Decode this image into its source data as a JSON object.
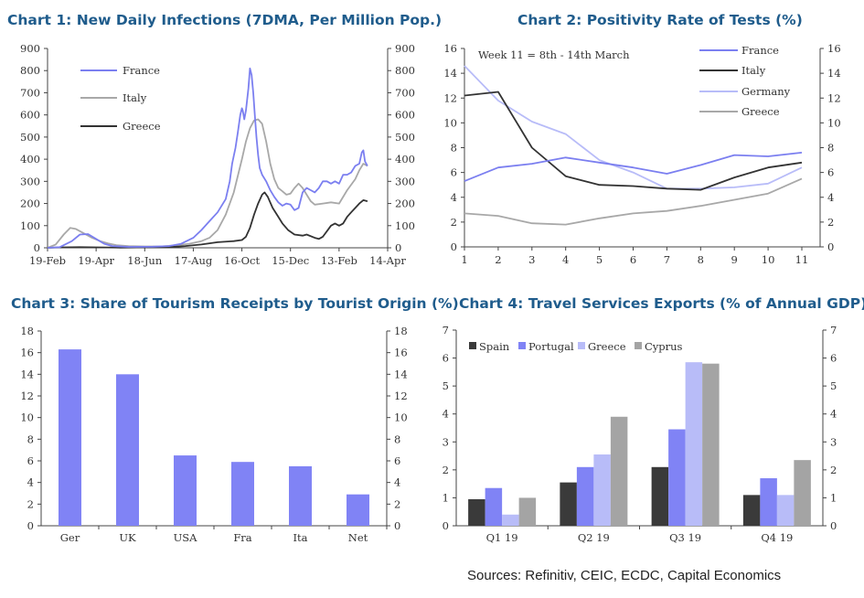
{
  "sources": "Sources: Refinitiv, CEIC, ECDC, Capital Economics",
  "colors": {
    "france": "#7b7ff0",
    "italy": "#333333",
    "germany": "#b8bcf8",
    "greece_line": "#a8a8a8",
    "italy_c1": "#a8a8a8",
    "greece_c1": "#333333",
    "bar": "#8083f5",
    "spain": "#3a3a3a",
    "portugal": "#8083f5",
    "greece_bar": "#b8bcf8",
    "cyprus": "#a4a4a4",
    "title": "#1f5c8c"
  },
  "chart_data": [
    {
      "type": "line",
      "title": "Chart 1: New Daily Infections (7DMA, Per Million Pop.)",
      "x_ticks": [
        "19-Feb",
        "19-Apr",
        "18-Jun",
        "17-Aug",
        "16-Oct",
        "15-Dec",
        "13-Feb",
        "14-Apr"
      ],
      "x_tick_days": [
        0,
        60,
        120,
        180,
        240,
        300,
        360,
        420
      ],
      "y_ticks": [
        "0",
        "100",
        "200",
        "300",
        "400",
        "500",
        "600",
        "700",
        "800",
        "900"
      ],
      "ylim": [
        0,
        900
      ],
      "xlim": [
        0,
        420
      ],
      "series": [
        {
          "name": "France",
          "points": [
            [
              0,
              0
            ],
            [
              15,
              3
            ],
            [
              30,
              30
            ],
            [
              40,
              60
            ],
            [
              50,
              62
            ],
            [
              60,
              40
            ],
            [
              70,
              18
            ],
            [
              80,
              8
            ],
            [
              100,
              4
            ],
            [
              130,
              5
            ],
            [
              150,
              8
            ],
            [
              165,
              18
            ],
            [
              180,
              45
            ],
            [
              190,
              80
            ],
            [
              200,
              120
            ],
            [
              210,
              160
            ],
            [
              220,
              220
            ],
            [
              225,
              300
            ],
            [
              228,
              380
            ],
            [
              232,
              450
            ],
            [
              235,
              520
            ],
            [
              238,
              600
            ],
            [
              240,
              630
            ],
            [
              241,
              620
            ],
            [
              243,
              580
            ],
            [
              245,
              620
            ],
            [
              248,
              720
            ],
            [
              250,
              810
            ],
            [
              252,
              780
            ],
            [
              254,
              700
            ],
            [
              256,
              600
            ],
            [
              258,
              500
            ],
            [
              260,
              420
            ],
            [
              262,
              360
            ],
            [
              265,
              330
            ],
            [
              270,
              300
            ],
            [
              275,
              260
            ],
            [
              280,
              230
            ],
            [
              285,
              205
            ],
            [
              290,
              190
            ],
            [
              295,
              200
            ],
            [
              300,
              195
            ],
            [
              305,
              170
            ],
            [
              310,
              180
            ],
            [
              315,
              250
            ],
            [
              320,
              270
            ],
            [
              325,
              260
            ],
            [
              330,
              250
            ],
            [
              335,
              270
            ],
            [
              340,
              300
            ],
            [
              345,
              300
            ],
            [
              350,
              290
            ],
            [
              355,
              300
            ],
            [
              360,
              290
            ],
            [
              365,
              330
            ],
            [
              370,
              330
            ],
            [
              375,
              340
            ],
            [
              380,
              370
            ],
            [
              385,
              380
            ],
            [
              388,
              430
            ],
            [
              390,
              440
            ],
            [
              392,
              390
            ],
            [
              395,
              370
            ]
          ]
        },
        {
          "name": "Italy",
          "points": [
            [
              0,
              0
            ],
            [
              10,
              15
            ],
            [
              20,
              60
            ],
            [
              28,
              90
            ],
            [
              35,
              85
            ],
            [
              45,
              65
            ],
            [
              55,
              45
            ],
            [
              65,
              30
            ],
            [
              75,
              20
            ],
            [
              85,
              12
            ],
            [
              100,
              8
            ],
            [
              120,
              6
            ],
            [
              140,
              6
            ],
            [
              160,
              12
            ],
            [
              175,
              18
            ],
            [
              190,
              30
            ],
            [
              200,
              45
            ],
            [
              210,
              80
            ],
            [
              220,
              150
            ],
            [
              230,
              250
            ],
            [
              240,
              400
            ],
            [
              245,
              480
            ],
            [
              250,
              540
            ],
            [
              255,
              575
            ],
            [
              260,
              580
            ],
            [
              265,
              560
            ],
            [
              270,
              480
            ],
            [
              275,
              380
            ],
            [
              280,
              310
            ],
            [
              285,
              270
            ],
            [
              290,
              255
            ],
            [
              295,
              240
            ],
            [
              300,
              245
            ],
            [
              305,
              270
            ],
            [
              310,
              290
            ],
            [
              315,
              270
            ],
            [
              320,
              240
            ],
            [
              325,
              210
            ],
            [
              330,
              195
            ],
            [
              340,
              200
            ],
            [
              350,
              205
            ],
            [
              360,
              200
            ],
            [
              370,
              260
            ],
            [
              380,
              310
            ],
            [
              385,
              350
            ],
            [
              390,
              380
            ],
            [
              395,
              370
            ]
          ]
        },
        {
          "name": "Greece",
          "points": [
            [
              0,
              0
            ],
            [
              20,
              2
            ],
            [
              40,
              3
            ],
            [
              60,
              2
            ],
            [
              90,
              1
            ],
            [
              120,
              2
            ],
            [
              150,
              3
            ],
            [
              170,
              8
            ],
            [
              190,
              15
            ],
            [
              210,
              25
            ],
            [
              230,
              30
            ],
            [
              240,
              35
            ],
            [
              245,
              50
            ],
            [
              250,
              90
            ],
            [
              255,
              150
            ],
            [
              260,
              200
            ],
            [
              265,
              240
            ],
            [
              268,
              250
            ],
            [
              272,
              230
            ],
            [
              278,
              180
            ],
            [
              285,
              140
            ],
            [
              290,
              110
            ],
            [
              297,
              80
            ],
            [
              305,
              60
            ],
            [
              315,
              55
            ],
            [
              320,
              60
            ],
            [
              330,
              45
            ],
            [
              335,
              40
            ],
            [
              340,
              50
            ],
            [
              345,
              75
            ],
            [
              350,
              100
            ],
            [
              355,
              110
            ],
            [
              360,
              100
            ],
            [
              365,
              110
            ],
            [
              370,
              140
            ],
            [
              375,
              160
            ],
            [
              380,
              180
            ],
            [
              385,
              200
            ],
            [
              390,
              215
            ],
            [
              395,
              210
            ]
          ]
        }
      ]
    },
    {
      "type": "line",
      "title": "Chart 2: Positivity Rate of Tests (%)",
      "annotation": "Week 11 = 8th - 14th March",
      "categories": [
        1,
        2,
        3,
        4,
        5,
        6,
        7,
        8,
        9,
        10,
        11
      ],
      "y_ticks": [
        "0",
        "2",
        "4",
        "6",
        "8",
        "10",
        "12",
        "14",
        "16"
      ],
      "ylim": [
        0,
        16
      ],
      "series": [
        {
          "name": "France",
          "values": [
            5.3,
            6.4,
            6.7,
            7.2,
            6.8,
            6.4,
            5.9,
            6.6,
            7.4,
            7.3,
            7.6
          ]
        },
        {
          "name": "Italy",
          "values": [
            12.2,
            12.5,
            8.0,
            5.7,
            5.0,
            4.9,
            4.7,
            4.6,
            5.6,
            6.4,
            6.8
          ]
        },
        {
          "name": "Germany",
          "values": [
            14.6,
            11.8,
            10.1,
            9.1,
            7.0,
            6.0,
            4.7,
            4.7,
            4.8,
            5.1,
            6.4
          ]
        },
        {
          "name": "Greece",
          "values": [
            2.7,
            2.5,
            1.9,
            1.8,
            2.3,
            2.7,
            2.9,
            3.3,
            3.8,
            4.3,
            5.5
          ]
        }
      ]
    },
    {
      "type": "bar",
      "title": "Chart 3: Share of Tourism Receipts by Tourist Origin (%)",
      "categories": [
        "Ger",
        "UK",
        "USA",
        "Fra",
        "Ita",
        "Net"
      ],
      "values": [
        16.3,
        14.0,
        6.5,
        5.9,
        5.5,
        2.9
      ],
      "y_ticks": [
        "0",
        "2",
        "4",
        "6",
        "8",
        "10",
        "12",
        "14",
        "16",
        "18"
      ],
      "ylim": [
        0,
        18
      ]
    },
    {
      "type": "bar",
      "title": "Chart 4: Travel Services Exports (% of Annual GDP)",
      "categories": [
        "Q1 19",
        "Q2 19",
        "Q3 19",
        "Q4 19"
      ],
      "y_ticks": [
        "0",
        "1",
        "2",
        "3",
        "4",
        "5",
        "6",
        "7"
      ],
      "ylim": [
        0,
        7
      ],
      "series": [
        {
          "name": "Spain",
          "values": [
            0.95,
            1.55,
            2.1,
            1.1
          ]
        },
        {
          "name": "Portugal",
          "values": [
            1.35,
            2.1,
            3.45,
            1.7
          ]
        },
        {
          "name": "Greece",
          "values": [
            0.4,
            2.55,
            5.85,
            1.1
          ]
        },
        {
          "name": "Cyprus",
          "values": [
            1.0,
            3.9,
            5.8,
            2.35
          ]
        }
      ]
    }
  ]
}
